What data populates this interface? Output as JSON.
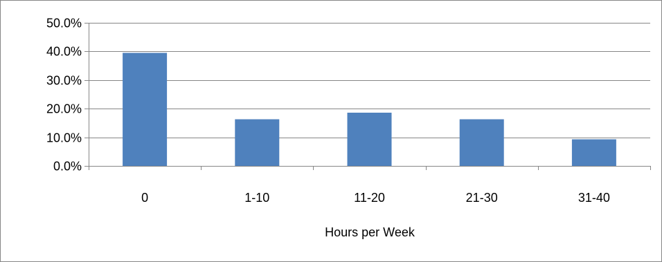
{
  "chart_data": {
    "type": "bar",
    "categories": [
      "0",
      "1-10",
      "11-20",
      "21-30",
      "31-40"
    ],
    "values": [
      39.5,
      16.3,
      18.6,
      16.3,
      9.3
    ],
    "value_unit": "percent",
    "title": "",
    "xlabel": "Hours per Week",
    "ylabel": "",
    "ylim": [
      0,
      50
    ],
    "yticks": [
      "0.0%",
      "10.0%",
      "20.0%",
      "30.0%",
      "40.0%",
      "50.0%"
    ],
    "grid": true,
    "legend": "none",
    "bar_color": "#4F81BD",
    "grid_color": "#868686"
  }
}
